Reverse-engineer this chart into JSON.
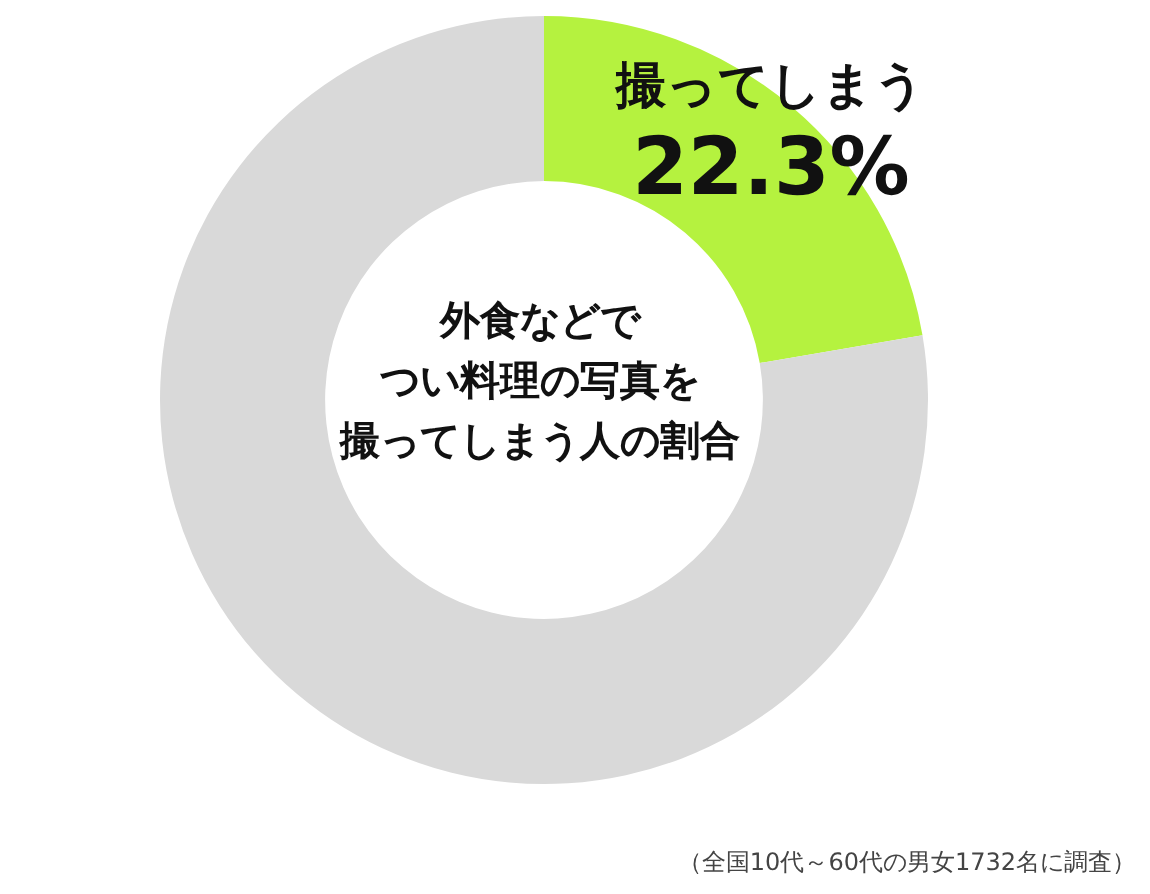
{
  "chart_data": {
    "type": "donut",
    "title": "外食などでつい料理の写真を撮ってしまう人の割合",
    "categories": [
      "撮ってしまう",
      null
    ],
    "values": [
      22.3,
      77.7
    ],
    "colors": [
      "#b5f23f",
      "#d9d9d9"
    ],
    "value_labels": [
      "22.3%",
      null
    ],
    "legend": false,
    "annotations": [
      "（全国10代～60代の男女1732名に調査）"
    ]
  }
}
